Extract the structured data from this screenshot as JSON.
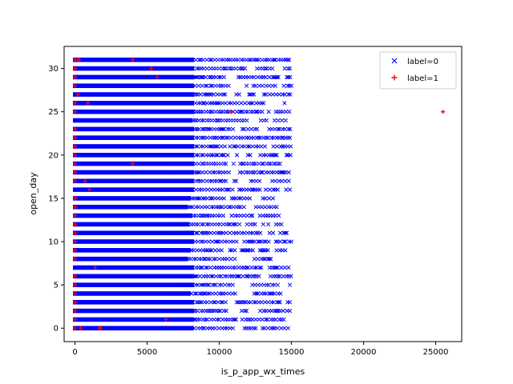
{
  "chart_data": {
    "type": "scatter",
    "xlabel": "is_p_app_wx_times",
    "ylabel": "open_day",
    "xlim": [
      -750,
      26800
    ],
    "ylim": [
      -1.55,
      32.55
    ],
    "xticks": [
      0,
      5000,
      10000,
      15000,
      20000,
      25000
    ],
    "yticks": [
      0,
      5,
      10,
      15,
      20,
      25,
      30
    ],
    "grid": false,
    "legend_position": "top-right",
    "series": [
      {
        "name": "label=0",
        "marker": "x",
        "color": "#0000ff",
        "dense_bands": [
          {
            "day": 31,
            "x_max": 15000
          },
          {
            "day": 30,
            "x_max": 15000
          },
          {
            "day": 29,
            "x_max": 15000
          },
          {
            "day": 28,
            "x_max": 15000
          },
          {
            "day": 27,
            "x_max": 15000
          },
          {
            "day": 26,
            "x_max": 15000
          },
          {
            "day": 25,
            "x_max": 15000
          },
          {
            "day": 24,
            "x_max": 14800
          },
          {
            "day": 23,
            "x_max": 15000
          },
          {
            "day": 22,
            "x_max": 15000
          },
          {
            "day": 21,
            "x_max": 15000
          },
          {
            "day": 20,
            "x_max": 15000
          },
          {
            "day": 19,
            "x_max": 15000
          },
          {
            "day": 18,
            "x_max": 15000
          },
          {
            "day": 17,
            "x_max": 15000
          },
          {
            "day": 16,
            "x_max": 15000
          },
          {
            "day": 15,
            "x_max": 14600
          },
          {
            "day": 14,
            "x_max": 14200
          },
          {
            "day": 13,
            "x_max": 14800
          },
          {
            "day": 12,
            "x_max": 14400
          },
          {
            "day": 11,
            "x_max": 15000
          },
          {
            "day": 10,
            "x_max": 15000
          },
          {
            "day": 9,
            "x_max": 14600
          },
          {
            "day": 8,
            "x_max": 14200
          },
          {
            "day": 7,
            "x_max": 15000
          },
          {
            "day": 6,
            "x_max": 15000
          },
          {
            "day": 5,
            "x_max": 15000
          },
          {
            "day": 4,
            "x_max": 14600
          },
          {
            "day": 3,
            "x_max": 15000
          },
          {
            "day": 2,
            "x_max": 15000
          },
          {
            "day": 1,
            "x_max": 15000
          },
          {
            "day": 0,
            "x_max": 15000
          }
        ]
      },
      {
        "name": "label=1",
        "marker": "+",
        "color": "#ff0000",
        "points": [
          [
            0,
            31
          ],
          [
            200,
            31
          ],
          [
            300,
            31
          ],
          [
            4000,
            31
          ],
          [
            0,
            30
          ],
          [
            5300,
            30
          ],
          [
            0,
            29
          ],
          [
            5700,
            29
          ],
          [
            0,
            28
          ],
          [
            200,
            27
          ],
          [
            0,
            26
          ],
          [
            900,
            26
          ],
          [
            0,
            25
          ],
          [
            10800,
            25
          ],
          [
            25500,
            25
          ],
          [
            0,
            23
          ],
          [
            0,
            22
          ],
          [
            0,
            21
          ],
          [
            0,
            20
          ],
          [
            0,
            19
          ],
          [
            4000,
            19
          ],
          [
            0,
            18
          ],
          [
            0,
            17
          ],
          [
            700,
            17
          ],
          [
            1000,
            16
          ],
          [
            0,
            15
          ],
          [
            0,
            14
          ],
          [
            0,
            13
          ],
          [
            0,
            12
          ],
          [
            0,
            11
          ],
          [
            0,
            10
          ],
          [
            0,
            9
          ],
          [
            0,
            8
          ],
          [
            1400,
            7
          ],
          [
            0,
            6
          ],
          [
            0,
            5
          ],
          [
            0,
            4
          ],
          [
            0,
            3
          ],
          [
            0,
            2
          ],
          [
            0,
            1
          ],
          [
            6300,
            1
          ],
          [
            0,
            0
          ],
          [
            400,
            0
          ],
          [
            1700,
            0
          ],
          [
            1800,
            0
          ]
        ]
      }
    ]
  }
}
